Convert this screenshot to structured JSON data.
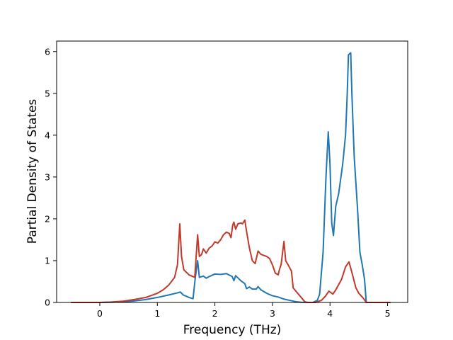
{
  "chart_data": {
    "type": "line",
    "title": "",
    "xlabel": "Frequency (THz)",
    "ylabel": "Partial Density of States",
    "xlim": [
      -0.75,
      5.35
    ],
    "ylim": [
      0,
      6.25
    ],
    "xticks": [
      0,
      1,
      2,
      3,
      4,
      5
    ],
    "yticks": [
      0,
      1,
      2,
      3,
      4,
      5,
      6
    ],
    "grid": false,
    "legend": "none",
    "series": [
      {
        "color": "#1f77b4",
        "points": [
          [
            -0.5,
            0
          ],
          [
            0.0,
            0
          ],
          [
            0.2,
            0.005
          ],
          [
            0.4,
            0.015
          ],
          [
            0.6,
            0.035
          ],
          [
            0.8,
            0.07
          ],
          [
            1.0,
            0.12
          ],
          [
            1.2,
            0.18
          ],
          [
            1.35,
            0.23
          ],
          [
            1.4,
            0.25
          ],
          [
            1.45,
            0.18
          ],
          [
            1.55,
            0.12
          ],
          [
            1.62,
            0.09
          ],
          [
            1.66,
            0.6
          ],
          [
            1.7,
            1.0
          ],
          [
            1.73,
            0.6
          ],
          [
            1.8,
            0.63
          ],
          [
            1.85,
            0.58
          ],
          [
            1.9,
            0.62
          ],
          [
            2.0,
            0.68
          ],
          [
            2.1,
            0.67
          ],
          [
            2.2,
            0.69
          ],
          [
            2.3,
            0.62
          ],
          [
            2.33,
            0.52
          ],
          [
            2.36,
            0.64
          ],
          [
            2.45,
            0.52
          ],
          [
            2.52,
            0.45
          ],
          [
            2.55,
            0.33
          ],
          [
            2.6,
            0.37
          ],
          [
            2.65,
            0.32
          ],
          [
            2.72,
            0.32
          ],
          [
            2.75,
            0.38
          ],
          [
            2.8,
            0.3
          ],
          [
            2.9,
            0.22
          ],
          [
            3.0,
            0.16
          ],
          [
            3.1,
            0.13
          ],
          [
            3.2,
            0.08
          ],
          [
            3.3,
            0.05
          ],
          [
            3.4,
            0.02
          ],
          [
            3.5,
            0.005
          ],
          [
            3.7,
            0
          ],
          [
            3.78,
            0.05
          ],
          [
            3.82,
            0.2
          ],
          [
            3.88,
            1.2
          ],
          [
            3.93,
            3.0
          ],
          [
            3.97,
            4.08
          ],
          [
            4.0,
            3.3
          ],
          [
            4.03,
            1.9
          ],
          [
            4.06,
            1.6
          ],
          [
            4.1,
            2.3
          ],
          [
            4.15,
            2.6
          ],
          [
            4.22,
            3.3
          ],
          [
            4.27,
            4.0
          ],
          [
            4.3,
            5.0
          ],
          [
            4.32,
            5.92
          ],
          [
            4.36,
            5.97
          ],
          [
            4.38,
            5.0
          ],
          [
            4.42,
            3.5
          ],
          [
            4.48,
            2.2
          ],
          [
            4.52,
            1.2
          ],
          [
            4.56,
            0.9
          ],
          [
            4.6,
            0.55
          ],
          [
            4.63,
            0
          ],
          [
            5.05,
            0
          ]
        ]
      },
      {
        "color": "#c0392b",
        "points": [
          [
            -0.5,
            0
          ],
          [
            0.0,
            0
          ],
          [
            0.2,
            0.01
          ],
          [
            0.4,
            0.03
          ],
          [
            0.6,
            0.07
          ],
          [
            0.8,
            0.12
          ],
          [
            1.0,
            0.22
          ],
          [
            1.1,
            0.3
          ],
          [
            1.2,
            0.42
          ],
          [
            1.3,
            0.6
          ],
          [
            1.35,
            0.9
          ],
          [
            1.39,
            1.88
          ],
          [
            1.42,
            1.1
          ],
          [
            1.46,
            0.78
          ],
          [
            1.55,
            0.66
          ],
          [
            1.65,
            0.6
          ],
          [
            1.7,
            1.62
          ],
          [
            1.73,
            1.1
          ],
          [
            1.77,
            1.15
          ],
          [
            1.8,
            1.28
          ],
          [
            1.85,
            1.18
          ],
          [
            1.9,
            1.3
          ],
          [
            1.95,
            1.35
          ],
          [
            2.0,
            1.45
          ],
          [
            2.05,
            1.42
          ],
          [
            2.1,
            1.5
          ],
          [
            2.15,
            1.62
          ],
          [
            2.2,
            1.68
          ],
          [
            2.25,
            1.65
          ],
          [
            2.28,
            1.55
          ],
          [
            2.31,
            1.85
          ],
          [
            2.33,
            1.92
          ],
          [
            2.36,
            1.75
          ],
          [
            2.4,
            1.88
          ],
          [
            2.45,
            1.9
          ],
          [
            2.48,
            1.88
          ],
          [
            2.52,
            1.97
          ],
          [
            2.55,
            1.7
          ],
          [
            2.6,
            1.3
          ],
          [
            2.65,
            1.0
          ],
          [
            2.7,
            0.93
          ],
          [
            2.75,
            1.23
          ],
          [
            2.8,
            1.15
          ],
          [
            2.9,
            1.1
          ],
          [
            2.95,
            1.05
          ],
          [
            3.0,
            0.9
          ],
          [
            3.05,
            0.7
          ],
          [
            3.1,
            0.66
          ],
          [
            3.12,
            0.78
          ],
          [
            3.15,
            0.9
          ],
          [
            3.2,
            1.46
          ],
          [
            3.23,
            1.0
          ],
          [
            3.28,
            0.88
          ],
          [
            3.33,
            0.75
          ],
          [
            3.36,
            0.35
          ],
          [
            3.42,
            0.25
          ],
          [
            3.5,
            0.12
          ],
          [
            3.56,
            0.02
          ],
          [
            3.6,
            0
          ],
          [
            3.75,
            0
          ],
          [
            3.85,
            0.05
          ],
          [
            3.92,
            0.15
          ],
          [
            3.98,
            0.27
          ],
          [
            4.05,
            0.2
          ],
          [
            4.1,
            0.3
          ],
          [
            4.2,
            0.55
          ],
          [
            4.27,
            0.85
          ],
          [
            4.33,
            0.97
          ],
          [
            4.38,
            0.72
          ],
          [
            4.45,
            0.35
          ],
          [
            4.5,
            0.22
          ],
          [
            4.58,
            0.1
          ],
          [
            4.63,
            0
          ],
          [
            5.05,
            0
          ]
        ]
      }
    ]
  }
}
